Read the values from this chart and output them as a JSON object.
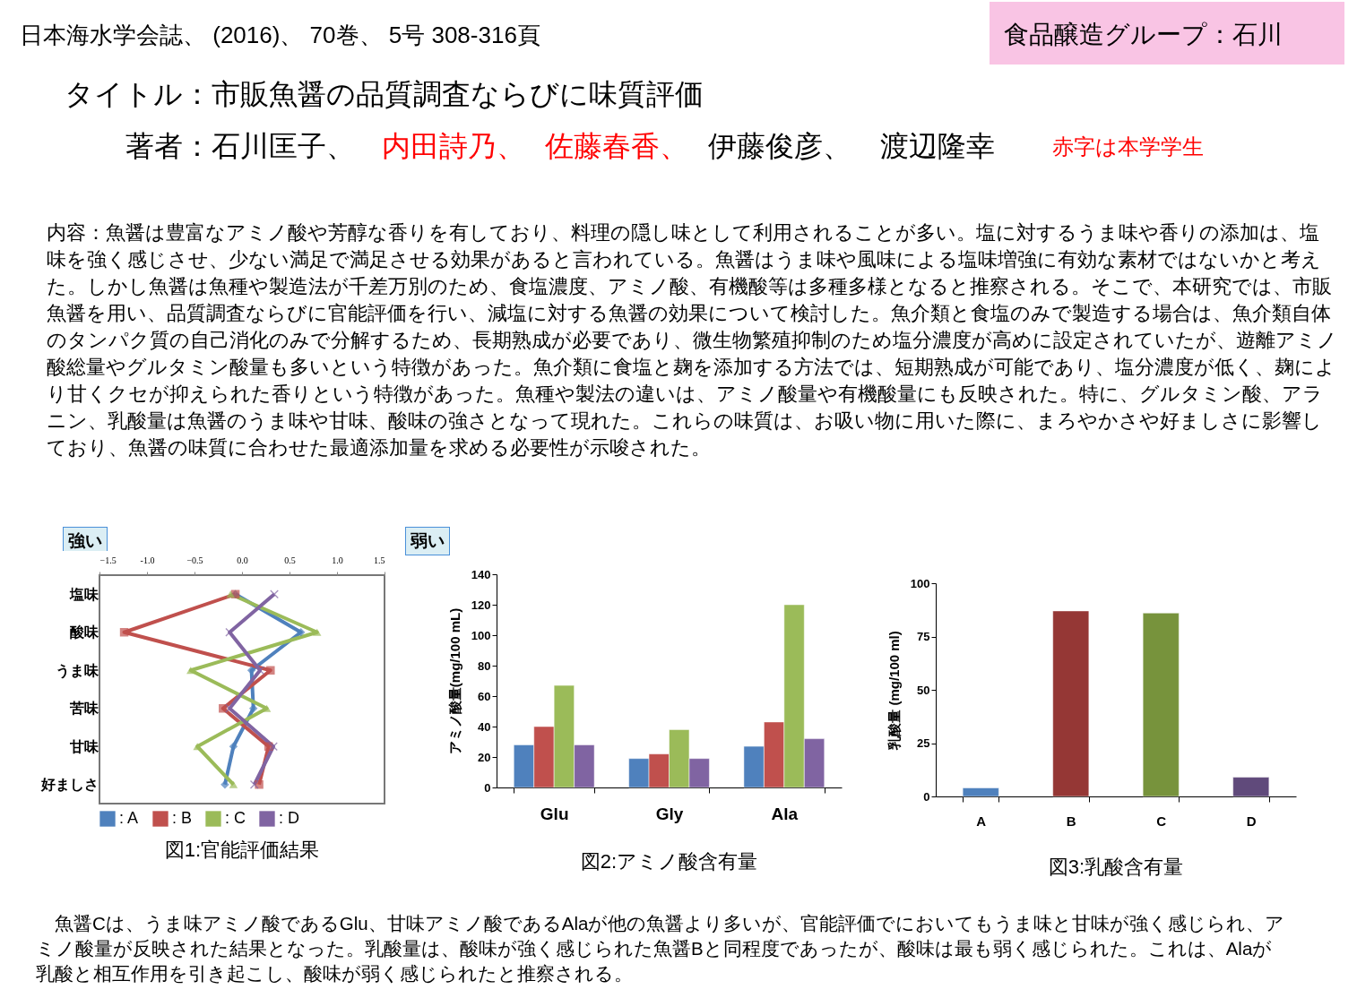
{
  "chart_data": [
    {
      "type": "line",
      "orientation": "horizontal",
      "title": "図1:官能評価結果",
      "categories": [
        "塩味",
        "酸味",
        "うま味",
        "苦味",
        "甘味",
        "好ましさ"
      ],
      "xlim": [
        -1.5,
        1.5
      ],
      "xticks": [
        -1.5,
        {
          "value": -1,
          "label": "-1.0"
        },
        -0.5,
        {
          "value": 0,
          "label": "0.0"
        },
        0.5,
        {
          "value": 1,
          "label": "1.0"
        },
        1.5
      ],
      "legend": "bottom",
      "series": [
        {
          "name": ": A",
          "color": "#4f81bd",
          "marker": "diamond",
          "values": [
            -0.07,
            0.62,
            0.1,
            0.12,
            -0.09,
            -0.18
          ]
        },
        {
          "name": ": B",
          "color": "#c0504d",
          "marker": "square",
          "values": [
            -0.07,
            -1.24,
            0.3,
            -0.2,
            0.28,
            0.18
          ]
        },
        {
          "name": ": C",
          "color": "#9bbb59",
          "marker": "triangle",
          "values": [
            -0.12,
            0.79,
            -0.54,
            0.26,
            -0.47,
            -0.09
          ]
        },
        {
          "name": ": D",
          "color": "#8064a2",
          "marker": "cross",
          "values": [
            0.34,
            -0.13,
            0.19,
            -0.13,
            0.33,
            0.13
          ]
        }
      ],
      "annotations": [
        "日本海水学会誌、 (2016)、 70巻、 5号 308-316頁",
        "食品醸造グループ：石川",
        "タイトル：市販魚醤の品質調査ならびに味質評価",
        "著者：石川匡子、",
        "内田詩乃、",
        "佐藤春香、",
        "伊藤俊彦、　渡辺隆幸",
        "赤字は本学学生",
        "内容：魚醤は豊富なアミノ酸や芳醇な香りを有しており、料理の隠し味として利用されることが多い。塩に対するうま味や香りの添加は、塩味を強く感じさせ、少ない満足で満足させる効果があると言われている。魚醤はうま味や風味による塩味増強に有効な素材ではないかと考えた。しかし魚醤は魚種や製造法が千差万別のため、食塩濃度、アミノ酸、有機酸等は多種多様となると推察される。そこで、本研究では、市販魚醤を用い、品質調査ならびに官能評価を行い、減塩に対する魚醤の効果について検討した。魚介類と食塩のみで製造する場合は、魚介類自体のタンパク質の自己消化のみで分解するため、長期熟成が必要であり、微生物繁殖抑制のため塩分濃度が高めに設定されていたが、遊離アミノ酸総量やグルタミン酸量も多いという特徴があった。魚介類に食塩と麹を添加する方法では、短期熟成が可能であり、塩分濃度が低く、麹により甘くクセが抑えられた香りという特徴があった。魚種や製法の違いは、アミノ酸量や有機酸量にも反映された。特に、グルタミン酸、アラニン、乳酸量は魚醤のうま味や甘味、酸味の強さとなって現れた。これらの味質は、お吸い物に用いた際に、まろやかさや好ましさに影響しており、魚醤の味質に合わせた最適添加量を求める必要性が示唆された。",
        "強い",
        "弱い",
        "　魚醤Cは、うま味アミノ酸であるGlu、甘味アミノ酸であるAlaが他の魚醤より多いが、官能評価でにおいてもうま味と甘味が強く感じられ、アミノ酸量が反映された結果となった。乳酸量は、酸味が強く感じられた魚醤Bと同程度であったが、酸味は最も弱く感じられた。これは、Alaが乳酸と相互作用を引き起こし、酸味が弱く感じられたと推察される。"
      ]
    },
    {
      "type": "bar",
      "title": "図2:アミノ酸含有量",
      "ylabel": "アミノ酸量(mg/100 mL)",
      "categories": [
        "Glu",
        "Gly",
        "Ala"
      ],
      "ylim": [
        0,
        140
      ],
      "yticks": [
        0,
        20,
        40,
        60,
        80,
        100,
        120,
        140
      ],
      "series": [
        {
          "color": "#4f81bd",
          "values": [
            28,
            19,
            27
          ]
        },
        {
          "color": "#c0504d",
          "values": [
            40,
            22,
            43
          ]
        },
        {
          "color": "#9bbb59",
          "values": [
            67,
            38,
            120
          ]
        },
        {
          "color": "#8064a2",
          "values": [
            28,
            19,
            32
          ]
        }
      ]
    },
    {
      "type": "bar",
      "title": "図3:乳酸含有量",
      "ylabel": "乳酸量 (mg/100 ml)",
      "categories": [
        "A",
        "B",
        "C",
        "D"
      ],
      "ylim": [
        0,
        100
      ],
      "yticks": [
        0,
        25,
        50,
        75,
        100
      ],
      "values": [
        4,
        87,
        86,
        9
      ],
      "colors": [
        "#4f81bd",
        "#953735",
        "#77933c",
        "#604a7b"
      ]
    }
  ]
}
